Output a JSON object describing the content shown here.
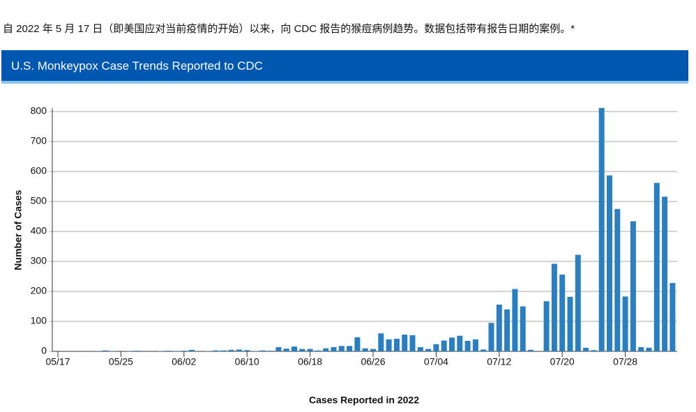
{
  "intro": "自 2022 年 5 月 17 日（即美国应对当前疫情的开始）以来，向 CDC 报告的猴痘病例趋势。数据包括带有报告日期的案例。*",
  "chart_data": {
    "type": "bar",
    "title": "U.S. Monkeypox Case Trends Reported to CDC",
    "x_label": "Cases Reported in 2022",
    "y_label": "Number of Cases",
    "color": "#2a7fc1",
    "categories": [
      "05/17",
      null,
      null,
      null,
      null,
      null,
      null,
      null,
      "05/25",
      null,
      null,
      null,
      null,
      null,
      null,
      null,
      "06/02",
      null,
      null,
      null,
      null,
      null,
      null,
      null,
      "06/10",
      null,
      null,
      null,
      null,
      null,
      null,
      null,
      "06/18",
      null,
      null,
      null,
      null,
      null,
      null,
      null,
      "06/26",
      null,
      null,
      null,
      null,
      null,
      null,
      null,
      "07/04",
      null,
      null,
      null,
      null,
      null,
      null,
      null,
      "07/12",
      null,
      null,
      null,
      null,
      null,
      null,
      null,
      "07/20",
      null,
      null,
      null,
      null,
      null,
      null,
      null,
      "07/28",
      null,
      null,
      null,
      null,
      null,
      null
    ],
    "values": [
      0,
      0,
      0,
      0,
      0,
      1,
      3,
      1,
      0,
      1,
      2,
      0,
      0,
      1,
      2,
      1,
      2,
      5,
      0,
      1,
      3,
      3,
      5,
      6,
      4,
      1,
      3,
      2,
      14,
      9,
      16,
      8,
      8,
      3,
      10,
      14,
      18,
      18,
      47,
      10,
      8,
      60,
      40,
      42,
      56,
      54,
      14,
      8,
      24,
      36,
      46,
      52,
      35,
      40,
      6,
      95,
      156,
      140,
      208,
      150,
      5,
      0,
      167,
      292,
      256,
      182,
      322,
      12,
      4,
      812,
      587,
      475,
      183,
      434,
      14,
      12,
      562,
      516,
      228
    ],
    "ylim": [
      0,
      800
    ],
    "yticks": [
      0,
      100,
      200,
      300,
      400,
      500,
      600,
      700,
      800
    ],
    "grid": true
  }
}
